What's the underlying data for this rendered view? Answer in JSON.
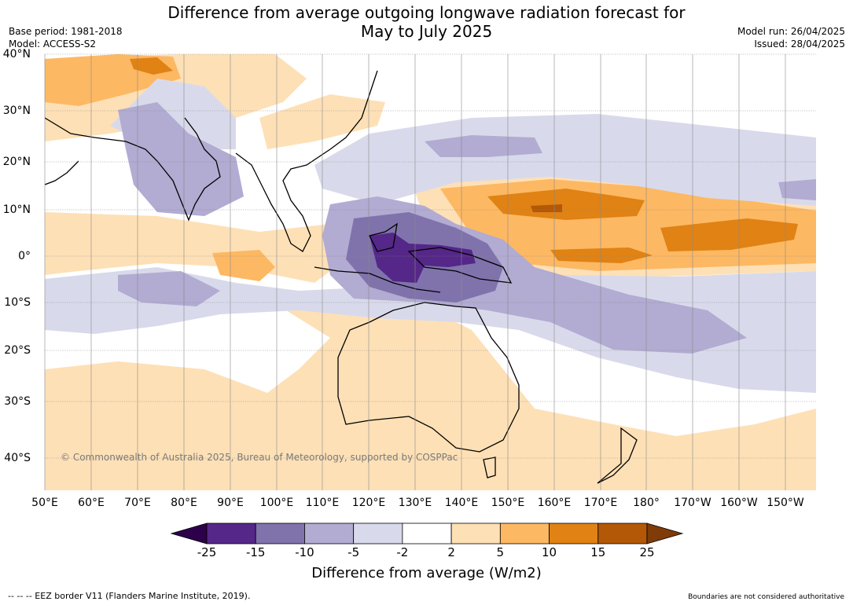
{
  "title_line1": "Difference from average outgoing longwave radiation forecast for",
  "title_line2": "May to July 2025",
  "base_period": "Base period: 1981-2018",
  "model": "Model: ACCESS-S2",
  "model_run": "Model run: 26/04/2025",
  "issued": "Issued: 28/04/2025",
  "copyright": "© Commonwealth of Australia 2025, Bureau of Meteorology, supported by COSPPac",
  "lat_labels": [
    "40°N",
    "30°N",
    "20°N",
    "10°N",
    "0°",
    "10°S",
    "20°S",
    "30°S",
    "40°S"
  ],
  "lon_labels": [
    "50°E",
    "60°E",
    "70°E",
    "80°E",
    "90°E",
    "100°E",
    "110°E",
    "120°E",
    "130°E",
    "140°E",
    "150°E",
    "160°E",
    "170°E",
    "180°",
    "170°W",
    "160°W",
    "150°W"
  ],
  "colorbar": {
    "title": "Difference from average (W/m2)",
    "ticks": [
      "-25",
      "-15",
      "-10",
      "-5",
      "-2",
      "2",
      "5",
      "10",
      "15",
      "25"
    ],
    "colors": [
      "#2d004b",
      "#542788",
      "#8073ac",
      "#b2abd2",
      "#d8daeb",
      "#ffffff",
      "#fee0b6",
      "#fdb863",
      "#e08214",
      "#b35806",
      "#7f3b08"
    ]
  },
  "footer_left": "--  --  -- EEZ border V11 (Flanders Marine Institute, 2019).",
  "footer_right": "Boundaries are not considered authoritative"
}
